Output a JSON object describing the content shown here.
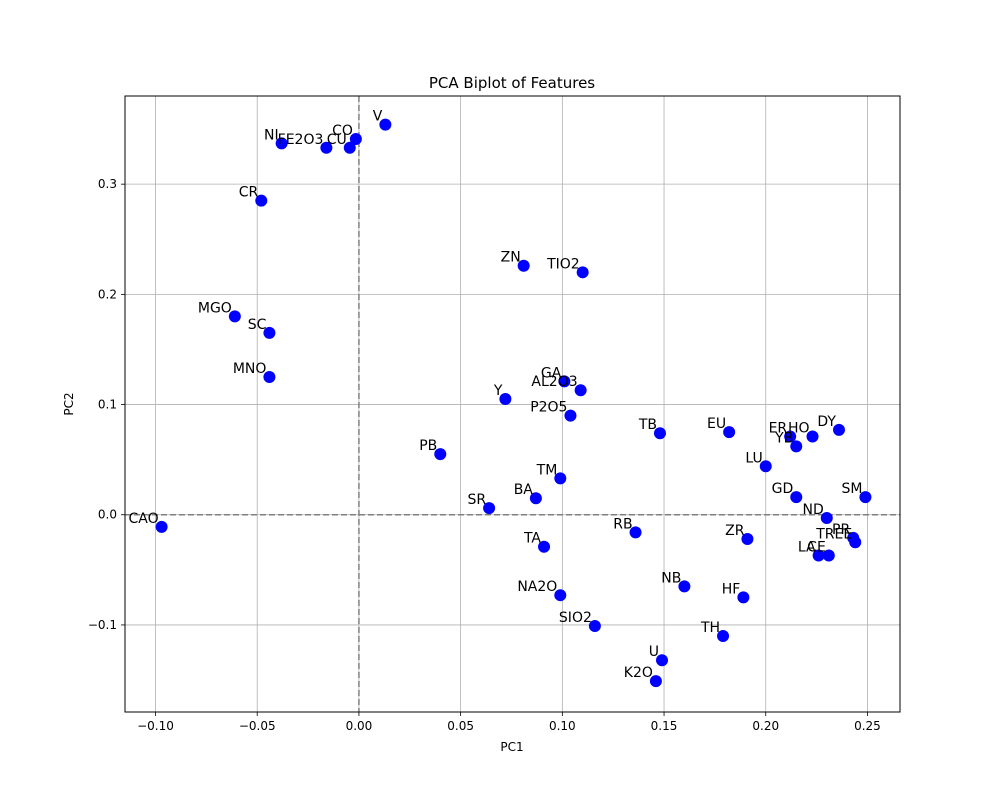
{
  "chart_data": {
    "type": "scatter",
    "title": "PCA Biplot of Features",
    "xlabel": "PC1",
    "ylabel": "PC2",
    "xlim": [
      -0.115,
      0.266
    ],
    "ylim": [
      -0.179,
      0.38
    ],
    "xticks": [
      -0.1,
      -0.05,
      0.0,
      0.05,
      0.1,
      0.15,
      0.2,
      0.25
    ],
    "xtick_labels": [
      "−0.10",
      "−0.05",
      "0.00",
      "0.05",
      "0.10",
      "0.15",
      "0.20",
      "0.25"
    ],
    "yticks": [
      -0.1,
      0.0,
      0.1,
      0.2,
      0.3
    ],
    "ytick_labels": [
      "−0.1",
      "0.0",
      "0.1",
      "0.2",
      "0.3"
    ],
    "grid": true,
    "reference_lines": {
      "x": 0,
      "y": 0,
      "style": "dashed"
    },
    "marker_color": "#0000ff",
    "points": [
      {
        "label": "CAO",
        "x": -0.097,
        "y": -0.011
      },
      {
        "label": "NI",
        "x": -0.038,
        "y": 0.337
      },
      {
        "label": "FE2O3",
        "x": -0.016,
        "y": 0.333
      },
      {
        "label": "CU",
        "x": -0.0045,
        "y": 0.333
      },
      {
        "label": "CO",
        "x": -0.0015,
        "y": 0.341
      },
      {
        "label": "V",
        "x": 0.013,
        "y": 0.354
      },
      {
        "label": "CR",
        "x": -0.048,
        "y": 0.285
      },
      {
        "label": "MGO",
        "x": -0.061,
        "y": 0.18
      },
      {
        "label": "SC",
        "x": -0.044,
        "y": 0.165
      },
      {
        "label": "MNO",
        "x": -0.044,
        "y": 0.125
      },
      {
        "label": "ZN",
        "x": 0.081,
        "y": 0.226
      },
      {
        "label": "TIO2",
        "x": 0.11,
        "y": 0.22
      },
      {
        "label": "GA",
        "x": 0.101,
        "y": 0.121
      },
      {
        "label": "AL2O3",
        "x": 0.109,
        "y": 0.113
      },
      {
        "label": "Y",
        "x": 0.072,
        "y": 0.105
      },
      {
        "label": "P2O5",
        "x": 0.104,
        "y": 0.09
      },
      {
        "label": "PB",
        "x": 0.04,
        "y": 0.055
      },
      {
        "label": "TB",
        "x": 0.148,
        "y": 0.074
      },
      {
        "label": "EU",
        "x": 0.182,
        "y": 0.075
      },
      {
        "label": "ER",
        "x": 0.212,
        "y": 0.071
      },
      {
        "label": "HO",
        "x": 0.223,
        "y": 0.071
      },
      {
        "label": "DY",
        "x": 0.236,
        "y": 0.077
      },
      {
        "label": "YB",
        "x": 0.215,
        "y": 0.062
      },
      {
        "label": "LU",
        "x": 0.2,
        "y": 0.044
      },
      {
        "label": "TM",
        "x": 0.099,
        "y": 0.033
      },
      {
        "label": "BA",
        "x": 0.087,
        "y": 0.015
      },
      {
        "label": "SR",
        "x": 0.064,
        "y": 0.006
      },
      {
        "label": "GD",
        "x": 0.215,
        "y": 0.016
      },
      {
        "label": "SM",
        "x": 0.249,
        "y": 0.016
      },
      {
        "label": "ND",
        "x": 0.23,
        "y": -0.003
      },
      {
        "label": "PR",
        "x": 0.243,
        "y": -0.021
      },
      {
        "label": "TREE",
        "x": 0.244,
        "y": -0.025
      },
      {
        "label": "LA",
        "x": 0.226,
        "y": -0.037
      },
      {
        "label": "CE",
        "x": 0.231,
        "y": -0.037
      },
      {
        "label": "RB",
        "x": 0.136,
        "y": -0.016
      },
      {
        "label": "ZR",
        "x": 0.191,
        "y": -0.022
      },
      {
        "label": "TA",
        "x": 0.091,
        "y": -0.029
      },
      {
        "label": "NB",
        "x": 0.16,
        "y": -0.065
      },
      {
        "label": "HF",
        "x": 0.189,
        "y": -0.075
      },
      {
        "label": "NA2O",
        "x": 0.099,
        "y": -0.073
      },
      {
        "label": "SIO2",
        "x": 0.116,
        "y": -0.101
      },
      {
        "label": "TH",
        "x": 0.179,
        "y": -0.11
      },
      {
        "label": "U",
        "x": 0.149,
        "y": -0.132
      },
      {
        "label": "K2O",
        "x": 0.146,
        "y": -0.151
      }
    ]
  }
}
